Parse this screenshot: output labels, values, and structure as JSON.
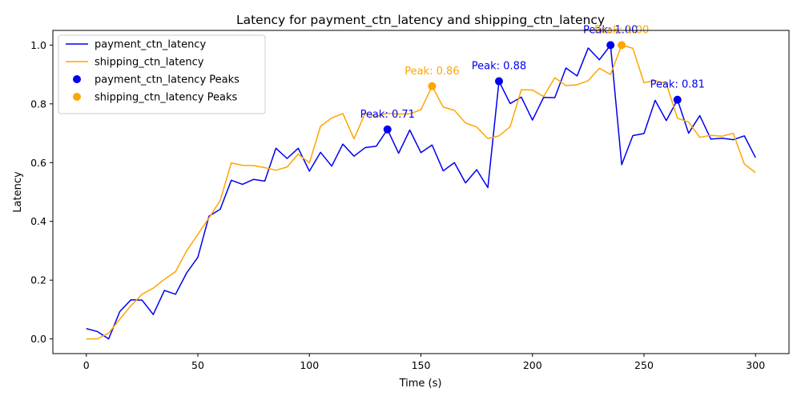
{
  "chart_data": {
    "type": "line",
    "title": "Latency for payment_ctn_latency and shipping_ctn_latency",
    "xlabel": "Time (s)",
    "ylabel": "Latency",
    "xlim": [
      -15,
      315
    ],
    "ylim": [
      -0.05,
      1.05
    ],
    "xticks": [
      0,
      50,
      100,
      150,
      200,
      250,
      300
    ],
    "xtick_labels": [
      "0",
      "50",
      "100",
      "150",
      "200",
      "250",
      "300"
    ],
    "yticks": [
      0.0,
      0.2,
      0.4,
      0.6,
      0.8,
      1.0
    ],
    "ytick_labels": [
      "0.0",
      "0.2",
      "0.4",
      "0.6",
      "0.8",
      "1.0"
    ],
    "grid": false,
    "legend_position": "top-left",
    "legend": [
      {
        "label": "payment_ctn_latency",
        "kind": "line",
        "color": "#0000ee"
      },
      {
        "label": "shipping_ctn_latency",
        "kind": "line",
        "color": "#ffa500"
      },
      {
        "label": "payment_ctn_latency Peaks",
        "kind": "marker",
        "color": "#0000ee"
      },
      {
        "label": "shipping_ctn_latency Peaks",
        "kind": "marker",
        "color": "#ffa500"
      }
    ],
    "x": [
      0,
      5,
      10,
      15,
      20,
      25,
      30,
      35,
      40,
      45,
      50,
      55,
      60,
      65,
      70,
      75,
      80,
      85,
      90,
      95,
      100,
      105,
      110,
      115,
      120,
      125,
      130,
      135,
      140,
      145,
      150,
      155,
      160,
      165,
      170,
      175,
      180,
      185,
      190,
      195,
      200,
      205,
      210,
      215,
      220,
      225,
      230,
      235,
      240,
      245,
      250,
      255,
      260,
      265,
      270,
      275,
      280,
      285,
      290,
      295,
      300
    ],
    "series": [
      {
        "name": "payment_ctn_latency",
        "color": "#0000ee",
        "values": [
          0.035,
          0.025,
          0.0,
          0.093,
          0.133,
          0.132,
          0.083,
          0.165,
          0.152,
          0.225,
          0.278,
          0.418,
          0.441,
          0.54,
          0.526,
          0.543,
          0.537,
          0.649,
          0.614,
          0.649,
          0.571,
          0.635,
          0.588,
          0.663,
          0.622,
          0.651,
          0.656,
          0.713,
          0.632,
          0.711,
          0.634,
          0.66,
          0.572,
          0.6,
          0.531,
          0.576,
          0.515,
          0.877,
          0.801,
          0.823,
          0.745,
          0.822,
          0.821,
          0.922,
          0.895,
          0.99,
          0.95,
          1.0,
          0.593,
          0.692,
          0.699,
          0.812,
          0.743,
          0.814,
          0.7,
          0.76,
          0.68,
          0.683,
          0.678,
          0.691,
          0.617
        ],
        "peaks": [
          {
            "x": 135,
            "y": 0.713,
            "label": "Peak: 0.71"
          },
          {
            "x": 185,
            "y": 0.877,
            "label": "Peak: 0.88"
          },
          {
            "x": 235,
            "y": 1.0,
            "label": "Peak: 1.00"
          },
          {
            "x": 265,
            "y": 0.814,
            "label": "Peak: 0.81"
          }
        ]
      },
      {
        "name": "shipping_ctn_latency",
        "color": "#ffa500",
        "values": [
          0.0,
          0.0,
          0.02,
          0.067,
          0.113,
          0.152,
          0.173,
          0.203,
          0.229,
          0.3,
          0.356,
          0.412,
          0.471,
          0.599,
          0.591,
          0.59,
          0.583,
          0.574,
          0.585,
          0.629,
          0.599,
          0.724,
          0.752,
          0.767,
          0.681,
          0.768,
          0.757,
          0.768,
          0.765,
          0.766,
          0.78,
          0.86,
          0.789,
          0.778,
          0.735,
          0.721,
          0.682,
          0.691,
          0.722,
          0.848,
          0.847,
          0.825,
          0.889,
          0.862,
          0.865,
          0.879,
          0.921,
          0.9,
          1.0,
          0.989,
          0.872,
          0.879,
          0.869,
          0.751,
          0.738,
          0.686,
          0.693,
          0.69,
          0.7,
          0.595,
          0.566
        ],
        "peaks": [
          {
            "x": 155,
            "y": 0.86,
            "label": "Peak: 0.86"
          },
          {
            "x": 240,
            "y": 1.0,
            "label": "Peak: 1.00"
          }
        ]
      }
    ]
  }
}
